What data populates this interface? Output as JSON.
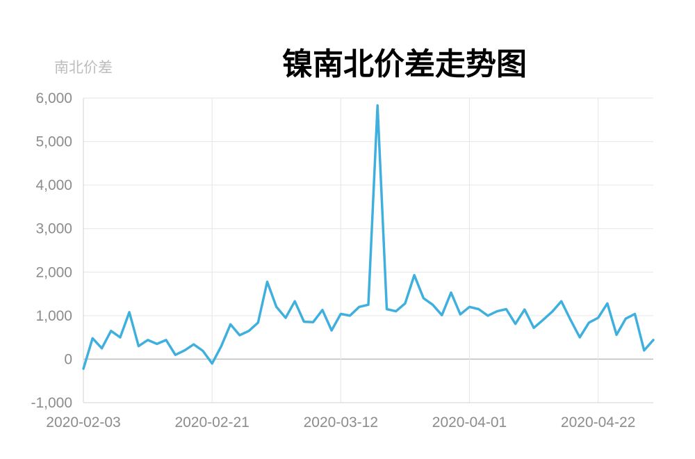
{
  "chart_data": {
    "type": "line",
    "title": "镍南北价差走势图",
    "ylabel": "南北价差",
    "xlabel": "",
    "ylim": [
      -1000,
      6000
    ],
    "yticks": [
      -1000,
      0,
      1000,
      2000,
      3000,
      4000,
      5000,
      6000
    ],
    "ytick_labels": [
      "-1,000",
      "0",
      "1,000",
      "2,000",
      "3,000",
      "4,000",
      "5,000",
      "6,000"
    ],
    "xtick_labels": [
      "2020-02-03",
      "2020-02-21",
      "2020-03-12",
      "2020-04-01",
      "2020-04-22"
    ],
    "xtick_index": [
      0,
      14,
      28,
      42,
      56
    ],
    "grid": true,
    "line_color": "#3fb0de",
    "series": [
      {
        "values": [
          -220,
          480,
          250,
          650,
          500,
          1080,
          300,
          440,
          350,
          440,
          100,
          200,
          340,
          190,
          -100,
          300,
          800,
          550,
          650,
          840,
          1780,
          1200,
          950,
          1330,
          860,
          850,
          1130,
          660,
          1040,
          1000,
          1200,
          1250,
          5830,
          1150,
          1100,
          1280,
          1930,
          1400,
          1250,
          1010,
          1530,
          1030,
          1200,
          1150,
          1000,
          1100,
          1150,
          810,
          1140,
          720,
          900,
          1090,
          1330,
          900,
          500,
          840,
          950,
          1280,
          560,
          930,
          1040,
          200,
          440
        ]
      }
    ]
  }
}
